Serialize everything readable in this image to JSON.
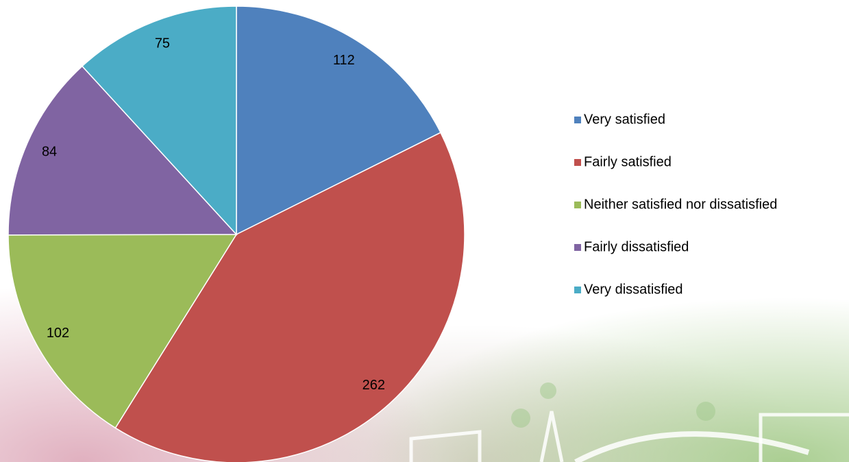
{
  "chart_data": {
    "type": "pie",
    "categories": [
      "Very satisfied",
      "Fairly satisfied",
      "Neither satisfied nor dissatisfied",
      "Fairly dissatisfied",
      "Very dissatisfied"
    ],
    "values": [
      112,
      262,
      102,
      84,
      75
    ],
    "colors": [
      "#4f81bd",
      "#c0504d",
      "#9bbb59",
      "#8064a2",
      "#4bacc6"
    ],
    "legend": "right"
  }
}
